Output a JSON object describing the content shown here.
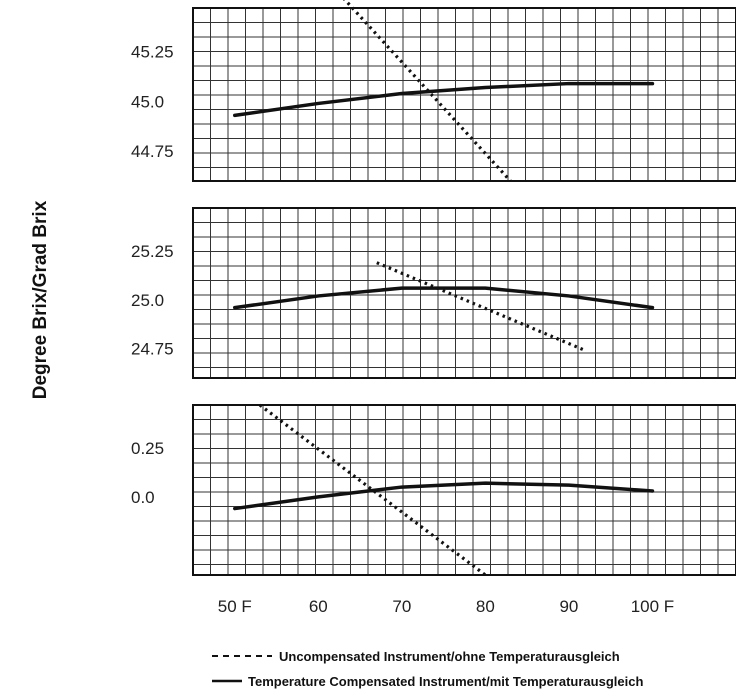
{
  "chart_data": {
    "type": "line",
    "ylabel": "Degree Brix/Grad Brix",
    "x_tick_labels": [
      "50 F",
      "60",
      "70",
      "80",
      "90",
      "100 F"
    ],
    "x_tick_values": [
      50,
      60,
      70,
      80,
      90,
      100
    ],
    "xlim": [
      45,
      110
    ],
    "grid": true,
    "legend": {
      "placement": "bottom",
      "entries": [
        {
          "style": "dashed",
          "label": "Uncompensated Instrument/ohne Temperaturausgleich"
        },
        {
          "style": "solid",
          "label": "Temperature Compensated Instrument/mit Temperaturausgleich"
        }
      ]
    },
    "panels": [
      {
        "y_tick_labels": [
          "45.25",
          "45.0",
          "44.75"
        ],
        "y_tick_values": [
          45.25,
          45.0,
          44.75
        ],
        "ylim": [
          44.6,
          45.47
        ],
        "series": [
          {
            "style": "solid",
            "x": [
              50,
              60,
              70,
              80,
              90,
              100
            ],
            "y": [
              44.93,
              44.99,
              45.04,
              45.07,
              45.09,
              45.09
            ]
          },
          {
            "style": "dashed",
            "x": [
              63,
              83
            ],
            "y": [
              45.52,
              44.6
            ]
          }
        ]
      },
      {
        "y_tick_labels": [
          "25.25",
          "25.0",
          "24.75"
        ],
        "y_tick_values": [
          25.25,
          25.0,
          24.75
        ],
        "ylim": [
          24.6,
          25.47
        ],
        "series": [
          {
            "style": "solid",
            "x": [
              50,
              60,
              70,
              80,
              90,
              100
            ],
            "y": [
              24.96,
              25.02,
              25.06,
              25.06,
              25.02,
              24.96
            ]
          },
          {
            "style": "dashed",
            "x": [
              67,
              92
            ],
            "y": [
              25.19,
              24.74
            ]
          }
        ]
      },
      {
        "y_tick_labels": [
          "0.25",
          "0.0"
        ],
        "y_tick_values": [
          0.25,
          0.0
        ],
        "ylim": [
          -0.4,
          0.47
        ],
        "series": [
          {
            "style": "solid",
            "x": [
              50,
              60,
              70,
              80,
              90,
              100
            ],
            "y": [
              -0.06,
              0.0,
              0.05,
              0.07,
              0.06,
              0.03
            ]
          },
          {
            "style": "dashed",
            "x": [
              53,
              80
            ],
            "y": [
              0.47,
              -0.4
            ]
          }
        ]
      }
    ]
  }
}
